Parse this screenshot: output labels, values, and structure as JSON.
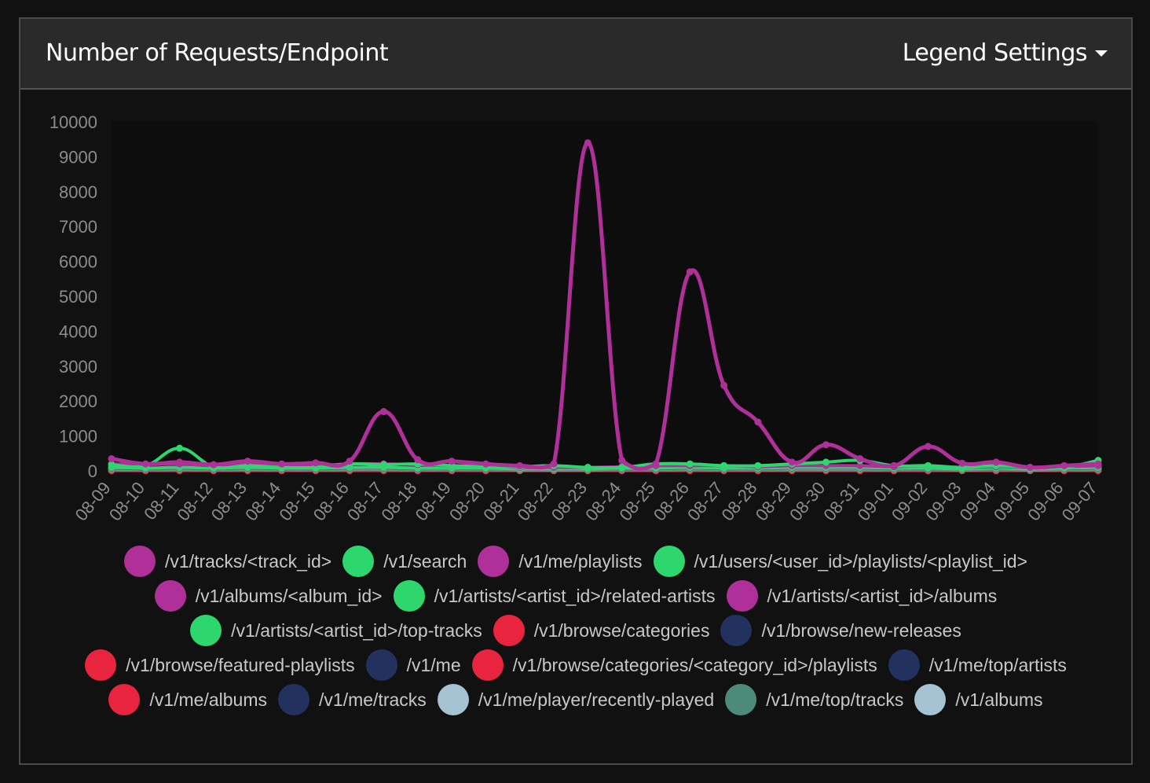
{
  "header": {
    "title": "Number of Requests/Endpoint",
    "legend_settings_label": "Legend Settings"
  },
  "chart_data": {
    "type": "line",
    "ylim": [
      0,
      10000
    ],
    "yticks": [
      "0",
      "1000",
      "2000",
      "3000",
      "4000",
      "5000",
      "6000",
      "7000",
      "8000",
      "9000",
      "10000"
    ],
    "categories": [
      "08-09",
      "08-10",
      "08-11",
      "08-12",
      "08-13",
      "08-14",
      "08-15",
      "08-16",
      "08-17",
      "08-18",
      "08-19",
      "08-20",
      "08-21",
      "08-22",
      "08-23",
      "08-24",
      "08-25",
      "08-26",
      "08-27",
      "08-28",
      "08-29",
      "08-30",
      "08-31",
      "09-01",
      "09-02",
      "09-03",
      "09-04",
      "09-05",
      "09-06",
      "09-07"
    ],
    "series": [
      {
        "name": "/v1/tracks/<track_id>",
        "color": "#b0309a",
        "values": [
          350,
          200,
          250,
          180,
          280,
          200,
          230,
          280,
          1700,
          320,
          280,
          200,
          150,
          200,
          9400,
          300,
          200,
          5700,
          2450,
          1400,
          250,
          750,
          350,
          150,
          700,
          220,
          250,
          100,
          150,
          200
        ]
      },
      {
        "name": "/v1/search",
        "color": "#2ed76e",
        "values": [
          180,
          150,
          650,
          120,
          150,
          100,
          100,
          200,
          180,
          200,
          150,
          120,
          120,
          150,
          100,
          100,
          200,
          200,
          150,
          150,
          200,
          250,
          300,
          150,
          150,
          100,
          150,
          100,
          100,
          300
        ]
      },
      {
        "name": "/v1/me/playlists",
        "color": "#b0309a",
        "values": [
          200,
          180,
          200,
          150,
          200,
          150,
          150,
          200,
          200,
          180,
          150,
          150,
          100,
          100,
          100,
          120,
          150,
          150,
          150,
          120,
          150,
          150,
          150,
          120,
          150,
          100,
          120,
          100,
          120,
          150
        ]
      },
      {
        "name": "/v1/users/<user_id>/playlists/<playlist_id>",
        "color": "#2ed76e",
        "values": [
          100,
          80,
          100,
          80,
          100,
          80,
          80,
          100,
          100,
          80,
          80,
          80,
          60,
          60,
          60,
          80,
          80,
          100,
          80,
          80,
          100,
          100,
          100,
          80,
          80,
          60,
          80,
          60,
          80,
          100
        ]
      },
      {
        "name": "/v1/albums/<album_id>",
        "color": "#b0309a",
        "values": [
          80,
          60,
          80,
          60,
          80,
          60,
          60,
          80,
          80,
          60,
          60,
          60,
          50,
          50,
          50,
          60,
          60,
          80,
          60,
          60,
          80,
          80,
          80,
          60,
          60,
          50,
          60,
          50,
          60,
          80
        ]
      },
      {
        "name": "/v1/artists/<artist_id>/related-artists",
        "color": "#2ed76e",
        "values": [
          60,
          50,
          60,
          50,
          60,
          50,
          50,
          60,
          60,
          50,
          50,
          50,
          40,
          40,
          40,
          50,
          50,
          60,
          50,
          50,
          60,
          60,
          60,
          50,
          50,
          40,
          50,
          40,
          50,
          60
        ]
      },
      {
        "name": "/v1/artists/<artist_id>/albums",
        "color": "#b0309a",
        "values": [
          50,
          40,
          50,
          40,
          50,
          40,
          40,
          50,
          50,
          40,
          40,
          40,
          30,
          30,
          30,
          40,
          40,
          50,
          40,
          40,
          50,
          50,
          50,
          40,
          40,
          30,
          40,
          30,
          40,
          50
        ]
      },
      {
        "name": "/v1/artists/<artist_id>/top-tracks",
        "color": "#2ed76e",
        "values": [
          40,
          30,
          40,
          30,
          40,
          30,
          30,
          40,
          40,
          30,
          30,
          30,
          20,
          20,
          20,
          30,
          30,
          40,
          30,
          30,
          40,
          40,
          40,
          30,
          30,
          20,
          30,
          20,
          30,
          40
        ]
      },
      {
        "name": "/v1/browse/categories",
        "color": "#e8243f",
        "values": [
          10,
          10,
          10,
          10,
          10,
          10,
          10,
          10,
          10,
          10,
          10,
          10,
          10,
          10,
          10,
          10,
          10,
          10,
          10,
          10,
          10,
          10,
          10,
          10,
          10,
          10,
          10,
          10,
          10,
          10
        ]
      },
      {
        "name": "/v1/browse/new-releases",
        "color": "#22315e",
        "values": [
          20,
          20,
          20,
          20,
          20,
          20,
          20,
          20,
          20,
          20,
          20,
          20,
          20,
          20,
          20,
          20,
          20,
          20,
          20,
          20,
          20,
          20,
          20,
          20,
          20,
          20,
          20,
          20,
          20,
          20
        ]
      },
      {
        "name": "/v1/browse/featured-playlists",
        "color": "#e8243f",
        "values": [
          10,
          10,
          10,
          10,
          10,
          10,
          10,
          10,
          10,
          10,
          10,
          10,
          10,
          10,
          10,
          10,
          10,
          10,
          10,
          10,
          10,
          10,
          10,
          10,
          10,
          10,
          10,
          10,
          10,
          10
        ]
      },
      {
        "name": "/v1/me",
        "color": "#22315e",
        "values": [
          20,
          20,
          20,
          20,
          20,
          20,
          20,
          20,
          20,
          20,
          20,
          20,
          20,
          20,
          20,
          20,
          20,
          20,
          20,
          20,
          20,
          20,
          20,
          20,
          20,
          20,
          20,
          20,
          20,
          20
        ]
      },
      {
        "name": "/v1/browse/categories/<category_id>/playlists",
        "color": "#e8243f",
        "values": [
          10,
          10,
          10,
          10,
          10,
          10,
          10,
          10,
          10,
          10,
          10,
          10,
          10,
          10,
          10,
          10,
          10,
          10,
          10,
          10,
          10,
          10,
          10,
          10,
          10,
          10,
          10,
          10,
          10,
          10
        ]
      },
      {
        "name": "/v1/me/top/artists",
        "color": "#22315e",
        "values": [
          20,
          20,
          20,
          20,
          20,
          20,
          20,
          20,
          20,
          20,
          20,
          20,
          20,
          20,
          20,
          20,
          20,
          20,
          20,
          20,
          20,
          20,
          20,
          20,
          20,
          20,
          20,
          20,
          20,
          20
        ]
      },
      {
        "name": "/v1/me/albums",
        "color": "#e8243f",
        "values": [
          10,
          10,
          10,
          10,
          10,
          10,
          10,
          10,
          10,
          10,
          10,
          10,
          10,
          10,
          10,
          10,
          10,
          10,
          10,
          10,
          10,
          10,
          10,
          10,
          10,
          10,
          10,
          10,
          10,
          10
        ]
      },
      {
        "name": "/v1/me/tracks",
        "color": "#22315e",
        "values": [
          20,
          20,
          20,
          20,
          20,
          20,
          20,
          20,
          20,
          20,
          20,
          20,
          20,
          20,
          20,
          20,
          20,
          20,
          20,
          20,
          20,
          20,
          20,
          20,
          20,
          20,
          20,
          20,
          20,
          20
        ]
      },
      {
        "name": "/v1/me/player/recently-played",
        "color": "#a6c3d4",
        "values": [
          30,
          30,
          30,
          30,
          30,
          30,
          30,
          30,
          30,
          30,
          30,
          30,
          30,
          30,
          30,
          30,
          30,
          30,
          30,
          30,
          30,
          30,
          30,
          30,
          30,
          30,
          30,
          30,
          30,
          30
        ]
      },
      {
        "name": "/v1/me/top/tracks",
        "color": "#4c8b7a",
        "values": [
          30,
          30,
          30,
          30,
          30,
          30,
          30,
          30,
          30,
          30,
          30,
          30,
          30,
          30,
          30,
          30,
          30,
          30,
          30,
          30,
          30,
          30,
          30,
          30,
          30,
          30,
          30,
          30,
          30,
          30
        ]
      },
      {
        "name": "/v1/albums",
        "color": "#a6c3d4",
        "values": [
          30,
          30,
          30,
          30,
          30,
          30,
          30,
          30,
          30,
          30,
          30,
          30,
          30,
          30,
          30,
          30,
          30,
          30,
          30,
          30,
          30,
          30,
          30,
          30,
          30,
          30,
          30,
          30,
          30,
          30
        ]
      }
    ],
    "legend_rows": [
      [
        0,
        1,
        2,
        3
      ],
      [
        4,
        5,
        6
      ],
      [
        7,
        8,
        9
      ],
      [
        10,
        11,
        12,
        13
      ],
      [
        14,
        15,
        16,
        17,
        18
      ]
    ],
    "legend": "bottom",
    "grid": false
  }
}
